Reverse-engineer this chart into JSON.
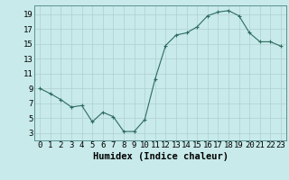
{
  "x": [
    0,
    1,
    2,
    3,
    4,
    5,
    6,
    7,
    8,
    9,
    10,
    11,
    12,
    13,
    14,
    15,
    16,
    17,
    18,
    19,
    20,
    21,
    22,
    23
  ],
  "y": [
    9.0,
    8.3,
    7.5,
    6.5,
    6.7,
    4.5,
    5.8,
    5.2,
    3.2,
    3.2,
    4.8,
    10.3,
    14.8,
    16.2,
    16.5,
    17.3,
    18.8,
    19.3,
    19.5,
    18.8,
    16.5,
    15.3,
    15.3,
    14.7
  ],
  "line_color": "#2e6b5e",
  "marker": "+",
  "marker_size": 3,
  "bg_color": "#c8eaea",
  "grid_color": "#b0d0d0",
  "xlabel": "Humidex (Indice chaleur)",
  "ylabel_ticks": [
    3,
    5,
    7,
    9,
    11,
    13,
    15,
    17,
    19
  ],
  "xtick_labels": [
    "0",
    "1",
    "2",
    "3",
    "4",
    "5",
    "6",
    "7",
    "8",
    "9",
    "10",
    "11",
    "12",
    "13",
    "14",
    "15",
    "16",
    "17",
    "18",
    "19",
    "20",
    "21",
    "22",
    "23"
  ],
  "xlim": [
    -0.5,
    23.5
  ],
  "ylim": [
    2.0,
    20.2
  ],
  "xlabel_fontsize": 7.5,
  "tick_fontsize": 6.5
}
